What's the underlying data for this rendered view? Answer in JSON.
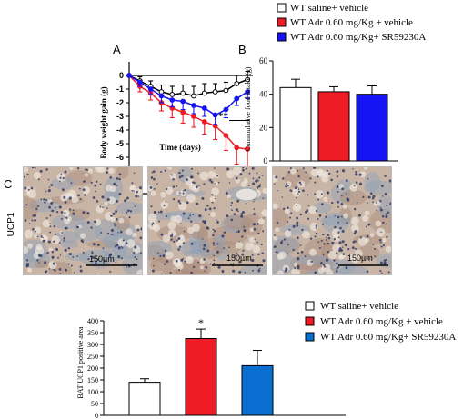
{
  "colors": {
    "white": "#ffffff",
    "red": "#ee1c25",
    "blue": "#1414f5",
    "blue2": "#0a6fd1",
    "black": "#000000"
  },
  "legend_top": [
    {
      "label": "WT saline+ vehicle",
      "color": "#ffffff"
    },
    {
      "label": "WT Adr 0.60 mg/Kg + vehicle",
      "color": "#ee1c25"
    },
    {
      "label": "WT Adr 0.60 mg/Kg+ SR59230A",
      "color": "#1414f5"
    }
  ],
  "panel_letters": {
    "a": "A",
    "b": "B",
    "c": "C"
  },
  "panel_c": {
    "row_label": "UCP1",
    "scale_label": "150µm"
  },
  "legend_bottom": [
    {
      "label": "WT saline+ vehicle",
      "color": "#ffffff"
    },
    {
      "label": "WT Adr 0.60 mg/Kg + vehicle",
      "color": "#ee1c25"
    },
    {
      "label": "WT Adr 0.60 mg/Kg+ SR59230A",
      "color": "#0a6fd1"
    }
  ],
  "chart_data": [
    {
      "type": "line",
      "xlabel": "Time (days)",
      "ylabel": "Body weight gain (g)",
      "xlim": [
        0,
        11.5
      ],
      "ylim": [
        -8,
        1
      ],
      "xticks": [
        0,
        5,
        10
      ],
      "yticks": [
        0,
        -1,
        -2,
        -3,
        -4,
        -5,
        -6,
        -7,
        -8
      ],
      "annotation": "**",
      "x": [
        0,
        1,
        2,
        3,
        4,
        5,
        6,
        7,
        8,
        9,
        10,
        11
      ],
      "series": [
        {
          "name": "WT saline+ vehicle",
          "color": "#000000",
          "marker_fill": "#ffffff",
          "values": [
            0,
            -0.4,
            -0.8,
            -1.2,
            -1.4,
            -1.3,
            -1.5,
            -1.3,
            -1.2,
            -1.1,
            -0.6,
            -0.3
          ],
          "errors": [
            0,
            0.3,
            0.4,
            0.5,
            0.6,
            0.6,
            0.7,
            0.7,
            0.6,
            0.6,
            0.6,
            0.6
          ]
        },
        {
          "name": "WT Adr 0.60 mg/Kg + vehicle",
          "color": "#ee1c25",
          "marker_fill": "#ee1c25",
          "values": [
            0,
            -0.8,
            -1.3,
            -2.0,
            -2.4,
            -2.7,
            -3.0,
            -3.4,
            -3.7,
            -4.4,
            -5.3,
            -5.4
          ],
          "errors": [
            0,
            0.4,
            0.5,
            0.6,
            0.7,
            0.8,
            0.8,
            0.9,
            1.0,
            1.1,
            1.2,
            1.3
          ]
        },
        {
          "name": "WT Adr 0.60 mg/Kg+ SR59230A",
          "color": "#1414f5",
          "marker_fill": "#1414f5",
          "values": [
            0,
            -0.5,
            -1.0,
            -1.5,
            -1.8,
            -1.9,
            -2.2,
            -2.4,
            -2.9,
            -2.5,
            -1.7,
            -1.2
          ],
          "errors": [
            0,
            0.3,
            0.4,
            0.5,
            0.5,
            0.6,
            0.6,
            0.6,
            0.7,
            0.6,
            0.5,
            0.5
          ]
        }
      ]
    },
    {
      "type": "bar",
      "ylabel": "Cummulative food intake (g)",
      "ylim": [
        0,
        60
      ],
      "yticks": [
        0,
        20,
        40,
        60
      ],
      "categories": [
        "WT saline+ vehicle",
        "WT Adr 0.60 mg/Kg + vehicle",
        "WT Adr 0.60 mg/Kg+ SR59230A"
      ],
      "values": [
        44,
        41.5,
        40
      ],
      "errors": [
        5,
        3,
        5
      ],
      "colors": [
        "#ffffff",
        "#ee1c25",
        "#1414f5"
      ]
    },
    {
      "type": "bar",
      "ylabel": "BAT UCP1 positive area",
      "ylim": [
        0,
        400
      ],
      "yticks": [
        0,
        50,
        100,
        150,
        200,
        250,
        300,
        350,
        400
      ],
      "categories": [
        "WT saline+ vehicle",
        "WT Adr 0.60 mg/Kg + vehicle",
        "WT Adr 0.60 mg/Kg+ SR59230A"
      ],
      "values": [
        140,
        325,
        210
      ],
      "errors": [
        15,
        40,
        65
      ],
      "colors": [
        "#ffffff",
        "#ee1c25",
        "#0a6fd1"
      ],
      "annotation": "*"
    }
  ]
}
